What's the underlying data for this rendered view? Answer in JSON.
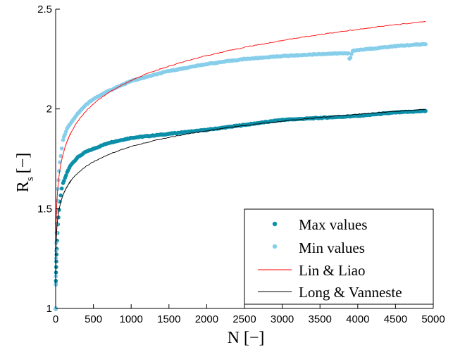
{
  "chart_data": {
    "type": "scatter",
    "xlabel": "N [−]",
    "ylabel_main": "R",
    "ylabel_sub": "s",
    "ylabel_bracket": "[−]",
    "xlim": [
      0,
      5000
    ],
    "ylim": [
      1,
      2.5
    ],
    "xticks": [
      0,
      500,
      1000,
      1500,
      2000,
      2500,
      3000,
      3500,
      4000,
      4500,
      5000
    ],
    "yticks": [
      1,
      1.5,
      2,
      2.5
    ],
    "ytick_labels": [
      "1",
      "1.5",
      "2",
      "2.5"
    ],
    "grid": false,
    "legend_position": "bottom-right",
    "series": [
      {
        "name": "Max values",
        "style": "dots",
        "color": "#0c8fa8",
        "x": [
          1,
          2,
          5,
          10,
          20,
          30,
          50,
          80,
          100,
          150,
          200,
          300,
          400,
          500,
          700,
          1000,
          1500,
          2000,
          2500,
          3000,
          3500,
          4000,
          4500,
          4900
        ],
        "y": [
          1.0,
          1.12,
          1.18,
          1.25,
          1.35,
          1.42,
          1.52,
          1.6,
          1.63,
          1.68,
          1.72,
          1.76,
          1.785,
          1.8,
          1.83,
          1.855,
          1.875,
          1.895,
          1.92,
          1.945,
          1.955,
          1.965,
          1.982,
          1.99
        ]
      },
      {
        "name": "Min values",
        "style": "dots",
        "color": "#87ceeb",
        "x": [
          1,
          2,
          5,
          10,
          20,
          30,
          50,
          80,
          100,
          150,
          200,
          300,
          400,
          500,
          700,
          1000,
          1500,
          2000,
          2500,
          3000,
          3500,
          3880,
          3895,
          3910,
          3930,
          4000,
          4500,
          4900
        ],
        "y": [
          1.0,
          1.12,
          1.25,
          1.35,
          1.5,
          1.6,
          1.72,
          1.8,
          1.85,
          1.9,
          1.93,
          1.98,
          2.02,
          2.05,
          2.09,
          2.14,
          2.19,
          2.225,
          2.25,
          2.265,
          2.275,
          2.28,
          2.24,
          2.265,
          2.29,
          2.295,
          2.315,
          2.325
        ]
      },
      {
        "name": "Lin & Liao",
        "style": "line",
        "color": "#ff0000",
        "model": "power",
        "a": 1.22,
        "b": 0.0815
      },
      {
        "name": "Long & Vanneste",
        "style": "line",
        "color": "#000000",
        "model": "power",
        "a": 1.18,
        "b": 0.062
      }
    ]
  }
}
